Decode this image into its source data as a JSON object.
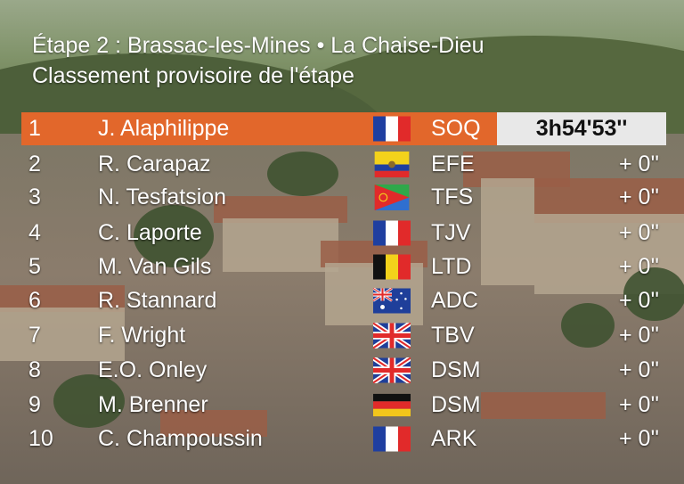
{
  "header": {
    "stage_line": "Étape 2 : Brassac-les-Mines • La Chaise-Dieu",
    "subtitle": "Classement provisoire de l'étape"
  },
  "colors": {
    "leader_bar": "#e2672b",
    "time_box": "#e8e8e8"
  },
  "standings": [
    {
      "rank": "1",
      "rider": "J. Alaphilippe",
      "flag": "france-flag-icon",
      "team": "SOQ",
      "time": "3h54'53''"
    },
    {
      "rank": "2",
      "rider": "R. Carapaz",
      "flag": "ecuador-flag-icon",
      "team": "EFE",
      "time": "+ 0''"
    },
    {
      "rank": "3",
      "rider": "N. Tesfatsion",
      "flag": "eritrea-flag-icon",
      "team": "TFS",
      "time": "+ 0''"
    },
    {
      "rank": "4",
      "rider": "C. Laporte",
      "flag": "france-flag-icon",
      "team": "TJV",
      "time": "+ 0''"
    },
    {
      "rank": "5",
      "rider": "M. Van Gils",
      "flag": "belgium-flag-icon",
      "team": "LTD",
      "time": "+ 0''"
    },
    {
      "rank": "6",
      "rider": "R. Stannard",
      "flag": "australia-flag-icon",
      "team": "ADC",
      "time": "+ 0''"
    },
    {
      "rank": "7",
      "rider": "F. Wright",
      "flag": "uk-flag-icon",
      "team": "TBV",
      "time": "+ 0''"
    },
    {
      "rank": "8",
      "rider": "E.O. Onley",
      "flag": "uk-flag-icon",
      "team": "DSM",
      "time": "+ 0''"
    },
    {
      "rank": "9",
      "rider": "M. Brenner",
      "flag": "germany-flag-icon",
      "team": "DSM",
      "time": "+ 0''"
    },
    {
      "rank": "10",
      "rider": "C. Champoussin",
      "flag": "france-flag-icon",
      "team": "ARK",
      "time": "+ 0''"
    }
  ]
}
